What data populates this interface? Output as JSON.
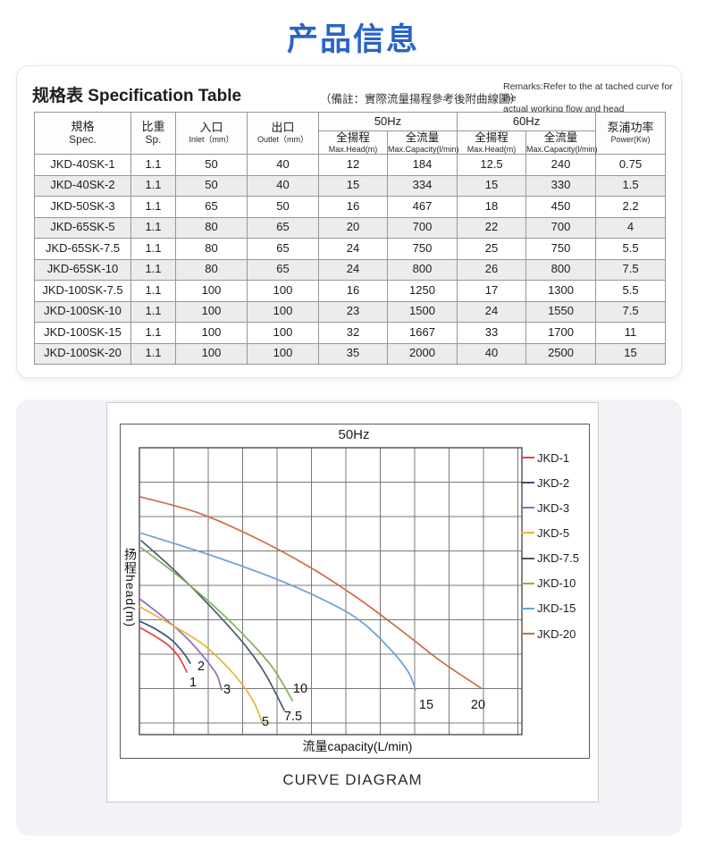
{
  "page_title": "产品信息",
  "spec": {
    "title_cjk": "规格表",
    "title_en": "Specification Table",
    "remark_cjk": "（備註：實際流量揚程參考後附曲線圖）",
    "remark_en1": "Remarks:Refer to the at tached curve for the",
    "remark_en2": "actual working flow and head",
    "table": {
      "headers": {
        "spec_cjk": "規格",
        "spec_en": "Spec.",
        "sp_cjk": "比重",
        "sp_en": "Sp.",
        "inlet_cjk": "入口",
        "inlet_en": "Inlet（mm）",
        "outlet_cjk": "出口",
        "outlet_en": "Outlet（mm）",
        "hz50": "50Hz",
        "hz60": "60Hz",
        "head_cjk": "全揚程",
        "head_en": "Max.Head(m)",
        "cap_cjk": "全流量",
        "cap_en": "Max.Capacity(l/min)",
        "power_cjk": "泵浦功率",
        "power_en": "Power(Kw)"
      },
      "rows": [
        [
          "JKD-40SK-1",
          "1.1",
          "50",
          "40",
          "12",
          "184",
          "12.5",
          "240",
          "0.75"
        ],
        [
          "JKD-40SK-2",
          "1.1",
          "50",
          "40",
          "15",
          "334",
          "15",
          "330",
          "1.5"
        ],
        [
          "JKD-50SK-3",
          "1.1",
          "65",
          "50",
          "16",
          "467",
          "18",
          "450",
          "2.2"
        ],
        [
          "JKD-65SK-5",
          "1.1",
          "80",
          "65",
          "20",
          "700",
          "22",
          "700",
          "4"
        ],
        [
          "JKD-65SK-7.5",
          "1.1",
          "80",
          "65",
          "24",
          "750",
          "25",
          "750",
          "5.5"
        ],
        [
          "JKD-65SK-10",
          "1.1",
          "80",
          "65",
          "24",
          "800",
          "26",
          "800",
          "7.5"
        ],
        [
          "JKD-100SK-7.5",
          "1.1",
          "100",
          "100",
          "16",
          "1250",
          "17",
          "1300",
          "5.5"
        ],
        [
          "JKD-100SK-10",
          "1.1",
          "100",
          "100",
          "23",
          "1500",
          "24",
          "1550",
          "7.5"
        ],
        [
          "JKD-100SK-15",
          "1.1",
          "100",
          "100",
          "32",
          "1667",
          "33",
          "1700",
          "11"
        ],
        [
          "JKD-100SK-20",
          "1.1",
          "100",
          "100",
          "35",
          "2000",
          "40",
          "2500",
          "15"
        ]
      ]
    }
  },
  "curve": {
    "chart_title": "50Hz",
    "y_label": "扬程head(m)",
    "x_label": "流量capacity(L/min)",
    "caption": "CURVE DIAGRAM",
    "curve_labels": [
      {
        "text": "1",
        "x": 81,
        "y": 289
      },
      {
        "text": "2",
        "x": 90,
        "y": 271
      },
      {
        "text": "3",
        "x": 119,
        "y": 297
      },
      {
        "text": "5",
        "x": 162,
        "y": 333
      },
      {
        "text": "7.5",
        "x": 193,
        "y": 327
      },
      {
        "text": "10",
        "x": 201,
        "y": 296
      },
      {
        "text": "15",
        "x": 342,
        "y": 314
      },
      {
        "text": "20",
        "x": 400,
        "y": 314
      }
    ]
  },
  "chart_data": {
    "type": "line",
    "title": "50Hz",
    "xlabel": "流量capacity(L/min)",
    "ylabel": "扬程head(m)",
    "grid": true,
    "legend_position": "right-inside-frame",
    "axis_tick_labels": "none shown (schematic grid only)",
    "series": [
      {
        "name": "JKD-1",
        "color": "#e6443d",
        "max_head_m": 12,
        "max_capacity_l_min": 184,
        "points": [
          [
            0.0,
            0.626
          ],
          [
            0.037,
            0.654
          ],
          [
            0.075,
            0.688
          ],
          [
            0.103,
            0.729
          ],
          [
            0.124,
            0.782
          ]
        ]
      },
      {
        "name": "JKD-2",
        "color": "#3c4f71",
        "max_head_m": 15,
        "max_capacity_l_min": 334,
        "points": [
          [
            0.0,
            0.604
          ],
          [
            0.042,
            0.632
          ],
          [
            0.084,
            0.67
          ],
          [
            0.114,
            0.713
          ],
          [
            0.133,
            0.751
          ]
        ]
      },
      {
        "name": "JKD-3",
        "color": "#9668b8",
        "max_head_m": 16,
        "max_capacity_l_min": 467,
        "points": [
          [
            0.0,
            0.526
          ],
          [
            0.061,
            0.589
          ],
          [
            0.119,
            0.657
          ],
          [
            0.166,
            0.726
          ],
          [
            0.201,
            0.788
          ],
          [
            0.215,
            0.844
          ]
        ]
      },
      {
        "name": "JKD-5",
        "color": "#e8b43c",
        "max_head_m": 20,
        "max_capacity_l_min": 700,
        "points": [
          [
            0.0,
            0.554
          ],
          [
            0.084,
            0.617
          ],
          [
            0.166,
            0.685
          ],
          [
            0.229,
            0.763
          ],
          [
            0.276,
            0.838
          ],
          [
            0.304,
            0.9
          ],
          [
            0.32,
            0.956
          ]
        ]
      },
      {
        "name": "JKD-7.5",
        "color": "#4b5a6e",
        "max_head_m": 24,
        "max_capacity_l_min": 750,
        "points": [
          [
            0.005,
            0.324
          ],
          [
            0.096,
            0.433
          ],
          [
            0.189,
            0.558
          ],
          [
            0.276,
            0.688
          ],
          [
            0.329,
            0.788
          ],
          [
            0.379,
            0.916
          ]
        ]
      },
      {
        "name": "JKD-10",
        "color": "#82b15c",
        "max_head_m": 24,
        "max_capacity_l_min": 800,
        "points": [
          [
            0.005,
            0.349
          ],
          [
            0.1,
            0.445
          ],
          [
            0.194,
            0.551
          ],
          [
            0.28,
            0.663
          ],
          [
            0.348,
            0.766
          ],
          [
            0.4,
            0.881
          ]
        ]
      },
      {
        "name": "JKD-15",
        "color": "#6aa1d8",
        "max_head_m": 32,
        "max_capacity_l_min": 1667,
        "points": [
          [
            0.0,
            0.296
          ],
          [
            0.178,
            0.371
          ],
          [
            0.341,
            0.449
          ],
          [
            0.47,
            0.523
          ],
          [
            0.575,
            0.601
          ],
          [
            0.657,
            0.704
          ],
          [
            0.703,
            0.782
          ],
          [
            0.722,
            0.844
          ]
        ]
      },
      {
        "name": "JKD-20",
        "color": "#cf6b47",
        "max_head_m": 35,
        "max_capacity_l_min": 2000,
        "points": [
          [
            0.002,
            0.171
          ],
          [
            0.154,
            0.227
          ],
          [
            0.294,
            0.308
          ],
          [
            0.435,
            0.408
          ],
          [
            0.563,
            0.517
          ],
          [
            0.68,
            0.632
          ],
          [
            0.785,
            0.741
          ],
          [
            0.893,
            0.838
          ]
        ]
      }
    ]
  }
}
